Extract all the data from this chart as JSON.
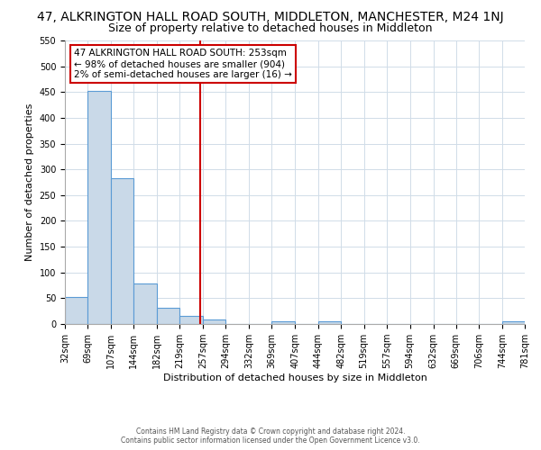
{
  "title": "47, ALKRINGTON HALL ROAD SOUTH, MIDDLETON, MANCHESTER, M24 1NJ",
  "subtitle": "Size of property relative to detached houses in Middleton",
  "xlabel": "Distribution of detached houses by size in Middleton",
  "ylabel": "Number of detached properties",
  "bin_edges": [
    32,
    69,
    107,
    144,
    182,
    219,
    257,
    294,
    332,
    369,
    407,
    444,
    482,
    519,
    557,
    594,
    632,
    669,
    706,
    744,
    781
  ],
  "bar_heights": [
    53,
    452,
    283,
    79,
    32,
    15,
    9,
    0,
    0,
    5,
    0,
    5,
    0,
    0,
    0,
    0,
    0,
    0,
    0,
    5
  ],
  "bar_color": "#c9d9e8",
  "bar_edge_color": "#5b9bd5",
  "property_value": 253,
  "vline_color": "#cc0000",
  "annotation_text": "47 ALKRINGTON HALL ROAD SOUTH: 253sqm\n← 98% of detached houses are smaller (904)\n2% of semi-detached houses are larger (16) →",
  "annotation_box_color": "white",
  "annotation_box_edge": "#cc0000",
  "ylim": [
    0,
    550
  ],
  "yticks": [
    0,
    50,
    100,
    150,
    200,
    250,
    300,
    350,
    400,
    450,
    500,
    550
  ],
  "grid_color": "#d0dce8",
  "footer1": "Contains HM Land Registry data © Crown copyright and database right 2024.",
  "footer2": "Contains public sector information licensed under the Open Government Licence v3.0.",
  "bg_color": "#ffffff",
  "title_fontsize": 10,
  "subtitle_fontsize": 9,
  "annotation_fontsize": 7.5,
  "axis_label_fontsize": 8,
  "tick_fontsize": 7,
  "footer_fontsize": 5.5
}
